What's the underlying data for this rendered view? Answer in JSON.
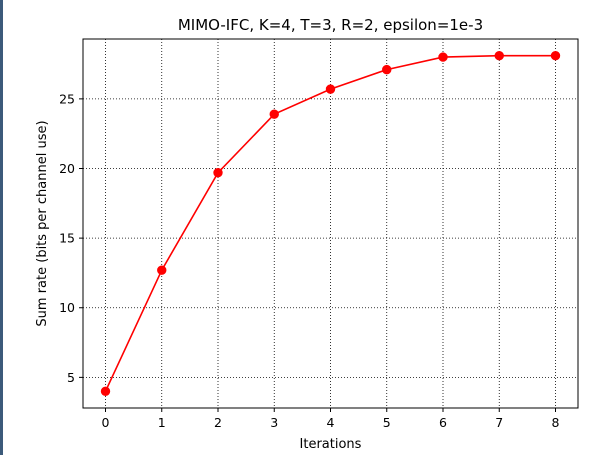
{
  "chart_data": {
    "type": "line",
    "title": "MIMO-IFC, K=4, T=3, R=2, epsilon=1e-3",
    "xlabel": "Iterations",
    "ylabel": "Sum rate (bits per channel use)",
    "x": [
      0,
      1,
      2,
      3,
      4,
      5,
      6,
      7,
      8
    ],
    "series": [
      {
        "values": [
          4.0,
          12.7,
          19.7,
          23.9,
          25.7,
          27.1,
          28.0,
          28.1,
          28.1
        ],
        "color": "#ff0000",
        "marker": "circle"
      }
    ],
    "xlim": [
      -0.4,
      8.4
    ],
    "ylim": [
      2.8,
      29.3
    ],
    "xticks": [
      0,
      1,
      2,
      3,
      4,
      5,
      6,
      7,
      8
    ],
    "yticks": [
      5,
      10,
      15,
      20,
      25
    ],
    "grid": true,
    "grid_style": "dotted"
  }
}
